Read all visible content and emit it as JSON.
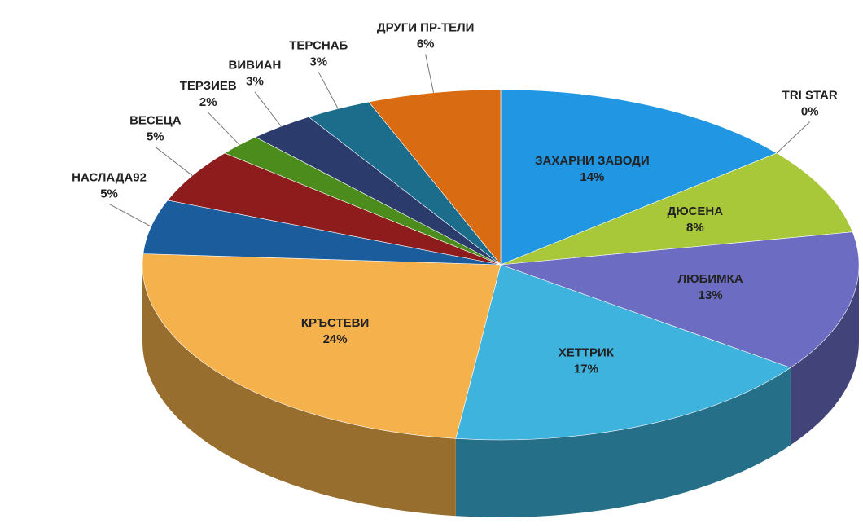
{
  "chart_data": {
    "type": "pie3d",
    "categories": [
      "ЗАХАРНИ ЗАВОДИ",
      "TRI STAR",
      "ДЮСЕНА",
      "ЛЮБИМКА",
      "ХЕТТРИК",
      "КРЪСТЕВИ",
      "НАСЛАДА92",
      "ВЕСЕЦА",
      "ТЕРЗИЕВ",
      "ВИВИАН",
      "ТЕРСНАБ",
      "ДРУГИ ПР-ТЕЛИ"
    ],
    "values": [
      14,
      0,
      8,
      13,
      17,
      24,
      5,
      5,
      2,
      3,
      3,
      6
    ],
    "value_labels": [
      "14%",
      "0%",
      "8%",
      "13%",
      "17%",
      "24%",
      "5%",
      "5%",
      "2%",
      "3%",
      "3%",
      "6%"
    ],
    "colors": [
      "#2196e3",
      "#888888",
      "#a8c83a",
      "#6b6cc2",
      "#3db3dd",
      "#f5b14c",
      "#1b5d9c",
      "#8e1c1c",
      "#4c8c1c",
      "#2b3b6c",
      "#1c6c8c",
      "#d96c12"
    ]
  }
}
